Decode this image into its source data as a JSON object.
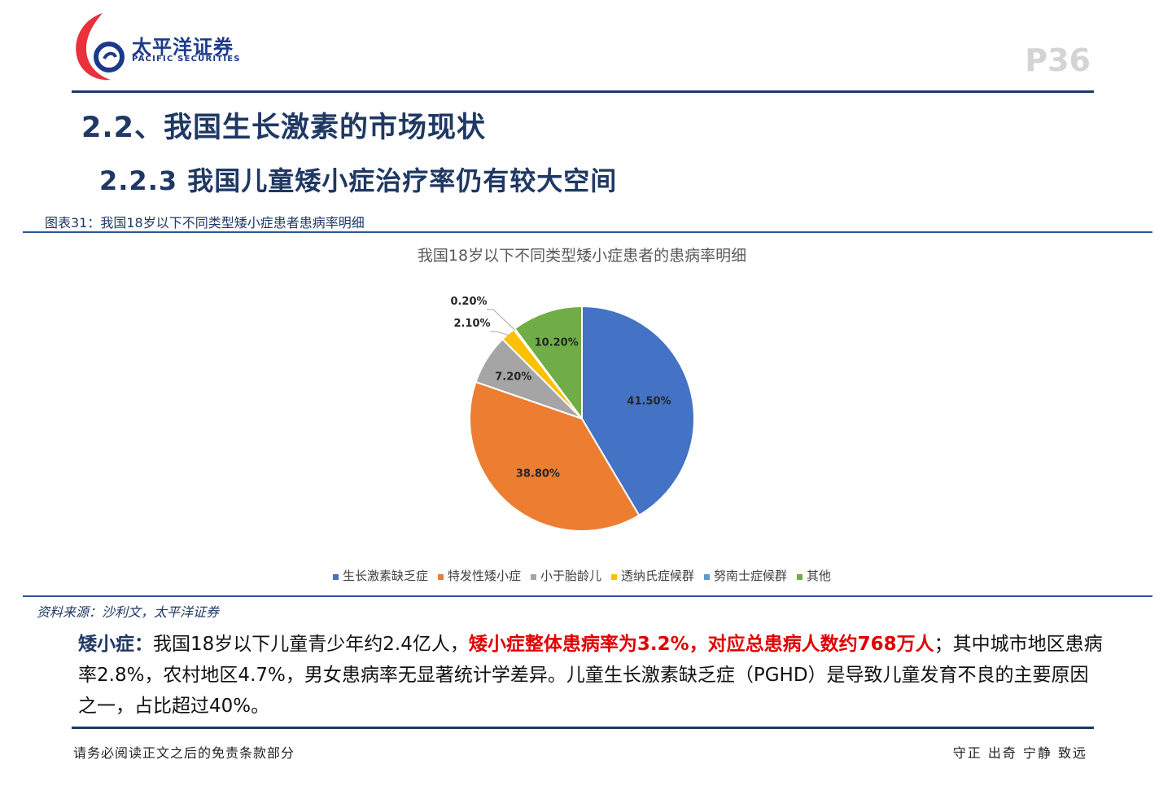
{
  "header": {
    "brand_cn": "太平洋证券",
    "brand_en": "PACIFIC SECURITIES",
    "page_number": "P36",
    "colors": {
      "brand_red": "#e8313a",
      "brand_blue": "#1d3a8a",
      "rule": "#1f3864"
    }
  },
  "section_title": "2.2、我国生长激素的市场现状",
  "subsection_title": "2.2.3 我国儿童矮小症治疗率仍有较大空间",
  "figure_caption": "图表31：我国18岁以下不同类型矮小症患者患病率明细",
  "chart_data": {
    "type": "pie",
    "title": "我国18岁以下不同类型矮小症患者的患病率明细",
    "slices": [
      {
        "name": "生长激素缺乏症",
        "value": 41.5,
        "label": "41.50%",
        "color": "#4472c4"
      },
      {
        "name": "特发性矮小症",
        "value": 38.8,
        "label": "38.80%",
        "color": "#ed7d31"
      },
      {
        "name": "小于胎龄儿",
        "value": 7.2,
        "label": "7.20%",
        "color": "#a5a5a5"
      },
      {
        "name": "透纳氏症候群",
        "value": 2.1,
        "label": "2.10%",
        "color": "#ffc000"
      },
      {
        "name": "努南士症候群",
        "value": 0.2,
        "label": "0.20%",
        "color": "#5b9bd5"
      },
      {
        "name": "其他",
        "value": 10.2,
        "label": "10.20%",
        "color": "#70ad47"
      }
    ],
    "start_angle_deg": 0,
    "direction": "clockwise",
    "legend_position": "bottom"
  },
  "source_note": "资料来源：沙利文，太平洋证券",
  "body": {
    "term": "矮小症：",
    "t1": "我国18岁以下儿童青少年约2.4亿人，",
    "highlight": "矮小症整体患病率为3.2%，对应总患病人数约768万人",
    "t2": "；其中城市地区患病率2.8%，农村地区4.7%，男女患病率无显著统计学差异。儿童生长激素缺乏症（PGHD）是导致儿童发育不良的主要原因之一，占比超过40%。"
  },
  "footer": {
    "disclaimer": "请务必阅读正文之后的免责条款部分",
    "motto": "守正 出奇 宁静 致远"
  }
}
